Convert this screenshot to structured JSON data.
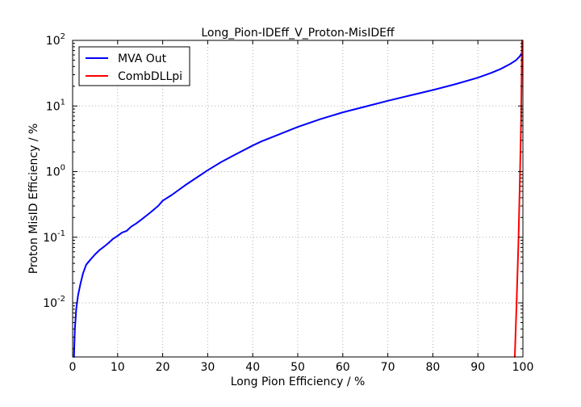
{
  "chart_data": {
    "type": "line",
    "title": "Long_Pion-IDEff_V_Proton-MisIDEff",
    "xlabel": "Long Pion Efficiency / %",
    "ylabel": "Proton MisID Efficiency / %",
    "xlim": [
      0,
      100
    ],
    "ylim": [
      0.0015,
      100
    ],
    "yscale": "log",
    "grid": true,
    "legend_position": "top-left",
    "x_ticks": [
      "0",
      "10",
      "20",
      "30",
      "40",
      "50",
      "60",
      "70",
      "80",
      "90",
      "100"
    ],
    "y_ticks": [
      {
        "base": "10",
        "exp": "-2",
        "value": 0.01
      },
      {
        "base": "10",
        "exp": "-1",
        "value": 0.1
      },
      {
        "base": "10",
        "exp": "0",
        "value": 1
      },
      {
        "base": "10",
        "exp": "1",
        "value": 10
      },
      {
        "base": "10",
        "exp": "2",
        "value": 100
      }
    ],
    "series": [
      {
        "name": "MVA Out",
        "color": "#0000ff",
        "x": [
          0.3,
          0.5,
          0.8,
          1.2,
          1.7,
          2.3,
          3,
          4,
          5,
          6,
          7,
          8,
          9,
          10,
          11,
          12,
          13,
          14,
          15,
          17,
          19,
          20,
          22,
          25,
          28,
          30,
          33,
          36,
          40,
          42,
          45,
          50,
          55,
          60,
          65,
          70,
          75,
          80,
          85,
          90,
          93,
          95,
          97,
          98.5,
          99.3,
          99.8
        ],
        "y": [
          0.0015,
          0.004,
          0.008,
          0.013,
          0.019,
          0.028,
          0.038,
          0.046,
          0.055,
          0.064,
          0.072,
          0.082,
          0.095,
          0.105,
          0.118,
          0.125,
          0.145,
          0.16,
          0.18,
          0.23,
          0.3,
          0.36,
          0.44,
          0.62,
          0.85,
          1.05,
          1.4,
          1.8,
          2.5,
          2.9,
          3.5,
          4.8,
          6.3,
          8.0,
          9.8,
          12.0,
          14.5,
          17.5,
          21.5,
          27.0,
          32.0,
          36.5,
          43.0,
          50.0,
          57.0,
          65.0
        ]
      },
      {
        "name": "CombDLLpi",
        "color": "#ff0000",
        "x": [
          98.2,
          98.6,
          99.0,
          99.3,
          99.6,
          99.8
        ],
        "y": [
          0.0015,
          0.01,
          0.08,
          0.6,
          6.0,
          100
        ]
      }
    ]
  }
}
